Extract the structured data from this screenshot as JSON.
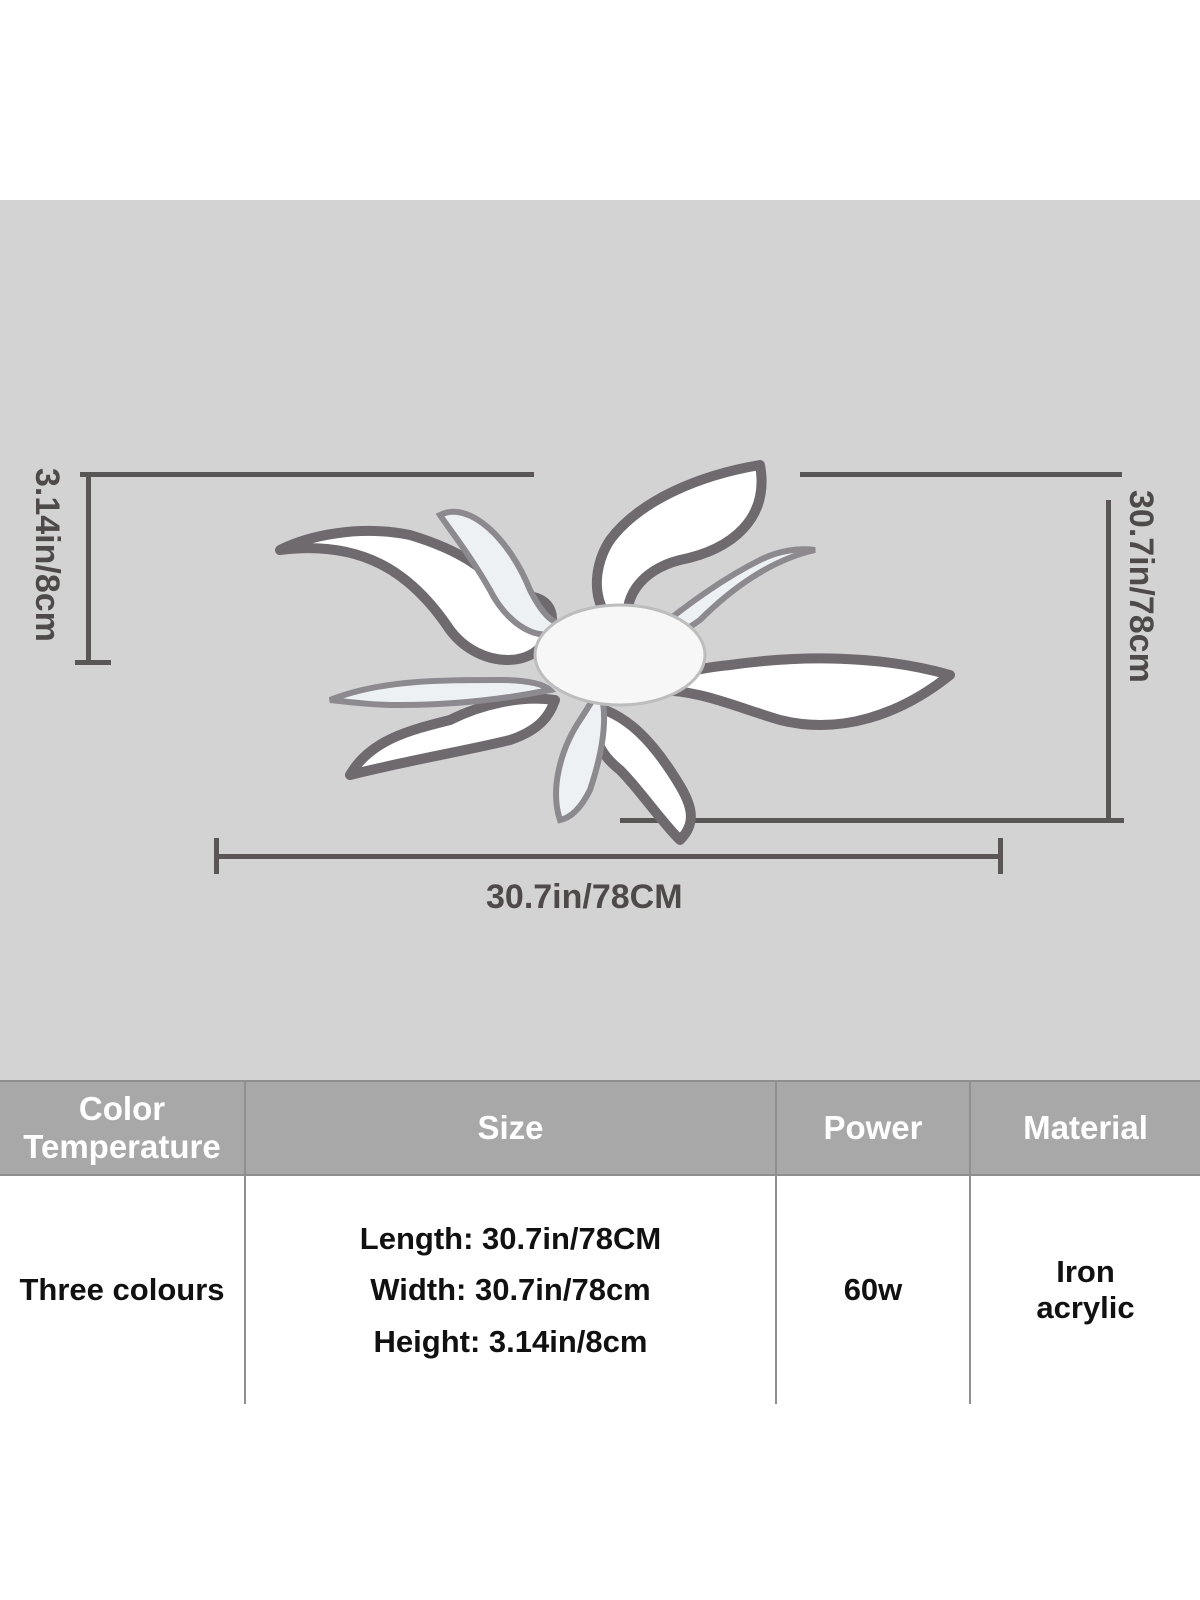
{
  "dimensions": {
    "height_label": "3.14in/8cm",
    "width_label": "30.7in/78cm",
    "length_label": "30.7in/78CM"
  },
  "spec_table": {
    "headers": [
      "Color Temperature",
      "Size",
      "Power",
      "Material"
    ],
    "color_temperature": "Three colours",
    "size": {
      "length": "Length:  30.7in/78CM",
      "width": "Width:  30.7in/78cm",
      "height": "Height:  3.14in/8cm"
    },
    "power": "60w",
    "material": [
      "Iron",
      "acrylic"
    ]
  },
  "colors": {
    "panel": "#d3d3d3",
    "header": "#a8a8a8",
    "dimension_line": "#5a5656"
  }
}
